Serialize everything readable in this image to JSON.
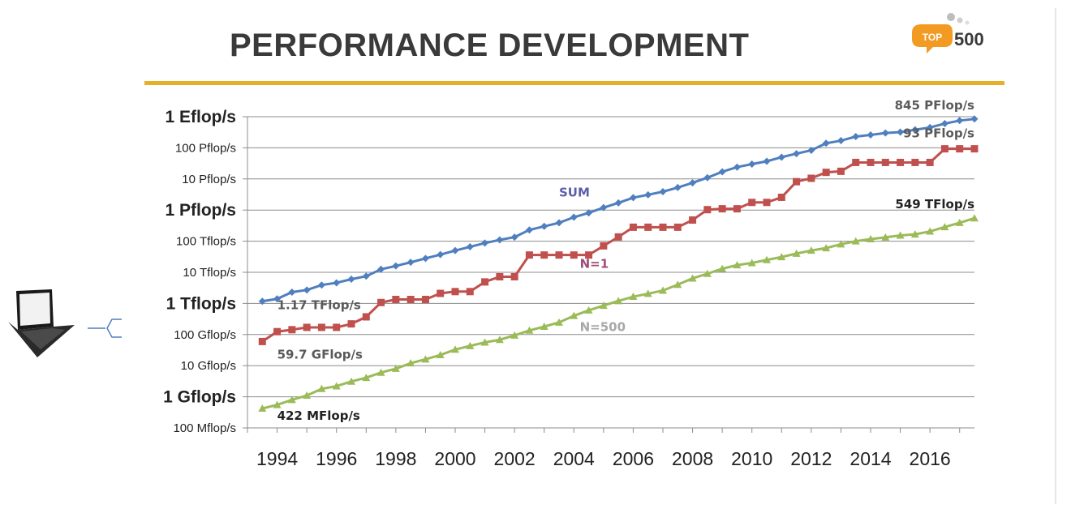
{
  "header": {
    "title": "PERFORMANCE DEVELOPMENT"
  },
  "logo": {
    "badge": "TOP",
    "number": "500"
  },
  "colors": {
    "sum": "#4f7fbf",
    "n1": "#c0504d",
    "n500": "#9bbb59",
    "rule": "#e5b12a"
  },
  "icons": {
    "device": "laptop-icon",
    "connector": "bracket-connector-icon"
  },
  "chart_data": {
    "type": "line",
    "title": "",
    "xlabel": "",
    "ylabel": "",
    "y_scale": "log",
    "y_unit": "flop/s",
    "ylim": [
      100000000.0,
      1e+18
    ],
    "xlim": [
      1993,
      2017.5
    ],
    "grid": true,
    "y_ticks": [
      {
        "value": 100000000.0,
        "label": "100 Mflop/s",
        "major": false
      },
      {
        "value": 1000000000.0,
        "label": "1 Gflop/s",
        "major": true
      },
      {
        "value": 10000000000.0,
        "label": "10 Gflop/s",
        "major": false
      },
      {
        "value": 100000000000.0,
        "label": "100 Gflop/s",
        "major": false
      },
      {
        "value": 1000000000000.0,
        "label": "1 Tflop/s",
        "major": true
      },
      {
        "value": 10000000000000.0,
        "label": "10 Tflop/s",
        "major": false
      },
      {
        "value": 100000000000000.0,
        "label": "100 Tflop/s",
        "major": false
      },
      {
        "value": 1000000000000000.0,
        "label": "1 Pflop/s",
        "major": true
      },
      {
        "value": 1e+16,
        "label": "10 Pflop/s",
        "major": false
      },
      {
        "value": 1e+17,
        "label": "100 Pflop/s",
        "major": false
      },
      {
        "value": 1e+18,
        "label": "1 Eflop/s",
        "major": true
      }
    ],
    "x_ticks": [
      1994,
      1996,
      1998,
      2000,
      2002,
      2004,
      2006,
      2008,
      2010,
      2012,
      2014,
      2016
    ],
    "series": [
      {
        "name": "SUM",
        "color": "#4f7fbf",
        "marker": "diamond",
        "x": [
          1993.5,
          1994,
          1994.5,
          1995,
          1995.5,
          1996,
          1996.5,
          1997,
          1997.5,
          1998,
          1998.5,
          1999,
          1999.5,
          2000,
          2000.5,
          2001,
          2001.5,
          2002,
          2002.5,
          2003,
          2003.5,
          2004,
          2004.5,
          2005,
          2005.5,
          2006,
          2006.5,
          2007,
          2007.5,
          2008,
          2008.5,
          2009,
          2009.5,
          2010,
          2010.5,
          2011,
          2011.5,
          2012,
          2012.5,
          2013,
          2013.5,
          2014,
          2014.5,
          2015,
          2015.5,
          2016,
          2016.5,
          2017,
          2017.5
        ],
        "y": [
          1170000000000.0,
          1400000000000.0,
          2300000000000.0,
          2700000000000.0,
          3900000000000.0,
          4600000000000.0,
          6000000000000.0,
          7500000000000.0,
          12500000000000.0,
          16000000000000.0,
          21000000000000.0,
          28000000000000.0,
          37000000000000.0,
          50000000000000.0,
          66000000000000.0,
          87000000000000.0,
          110000000000000.0,
          135000000000000.0,
          230000000000000.0,
          300000000000000.0,
          390000000000000.0,
          590000000000000.0,
          810000000000000.0,
          1200000000000000.0,
          1700000000000000.0,
          2500000000000000.0,
          3100000000000000.0,
          3900000000000000.0,
          5300000000000000.0,
          7500000000000000.0,
          1.1e+16,
          1.7e+16,
          2.4e+16,
          3e+16,
          3.7e+16,
          5e+16,
          6.5e+16,
          8.3e+16,
          1.4e+17,
          1.7e+17,
          2.3e+17,
          2.6e+17,
          3e+17,
          3.2e+17,
          3.8e+17,
          4.5e+17,
          6e+17,
          7.5e+17,
          8.45e+17
        ]
      },
      {
        "name": "N=1",
        "color": "#c0504d",
        "marker": "square",
        "x": [
          1993.5,
          1994,
          1994.5,
          1995,
          1995.5,
          1996,
          1996.5,
          1997,
          1997.5,
          1998,
          1998.5,
          1999,
          1999.5,
          2000,
          2000.5,
          2001,
          2001.5,
          2002,
          2002.5,
          2003,
          2003.5,
          2004,
          2004.5,
          2005,
          2005.5,
          2006,
          2006.5,
          2007,
          2007.5,
          2008,
          2008.5,
          2009,
          2009.5,
          2010,
          2010.5,
          2011,
          2011.5,
          2012,
          2012.5,
          2013,
          2013.5,
          2014,
          2014.5,
          2015,
          2015.5,
          2016,
          2016.5,
          2017,
          2017.5
        ],
        "y": [
          59700000000.0,
          124000000000.0,
          143000000000.0,
          170000000000.0,
          170000000000.0,
          170000000000.0,
          220000000000.0,
          370000000000.0,
          1070000000000.0,
          1340000000000.0,
          1340000000000.0,
          1340000000000.0,
          2100000000000.0,
          2400000000000.0,
          2400000000000.0,
          4900000000000.0,
          7200000000000.0,
          7200000000000.0,
          35900000000000.0,
          35900000000000.0,
          35900000000000.0,
          35900000000000.0,
          35900000000000.0,
          70700000000000.0,
          137000000000000.0,
          281000000000000.0,
          281000000000000.0,
          281000000000000.0,
          281000000000000.0,
          478000000000000.0,
          1030000000000000.0,
          1100000000000000.0,
          1100000000000000.0,
          1760000000000000.0,
          1760000000000000.0,
          2570000000000000.0,
          8160000000000000.0,
          1.05e+16,
          1.63e+16,
          1.76e+16,
          3.39e+16,
          3.39e+16,
          3.39e+16,
          3.39e+16,
          3.39e+16,
          3.39e+16,
          9.3e+16,
          9.3e+16,
          9.3e+16
        ]
      },
      {
        "name": "N=500",
        "color": "#9bbb59",
        "marker": "triangle",
        "x": [
          1993.5,
          1994,
          1994.5,
          1995,
          1995.5,
          1996,
          1996.5,
          1997,
          1997.5,
          1998,
          1998.5,
          1999,
          1999.5,
          2000,
          2000.5,
          2001,
          2001.5,
          2002,
          2002.5,
          2003,
          2003.5,
          2004,
          2004.5,
          2005,
          2005.5,
          2006,
          2006.5,
          2007,
          2007.5,
          2008,
          2008.5,
          2009,
          2009.5,
          2010,
          2010.5,
          2011,
          2011.5,
          2012,
          2012.5,
          2013,
          2013.5,
          2014,
          2014.5,
          2015,
          2015.5,
          2016,
          2016.5,
          2017,
          2017.5
        ],
        "y": [
          422000000.0,
          550000000.0,
          800000000.0,
          1100000000.0,
          1800000000.0,
          2200000000.0,
          3100000000.0,
          4100000000.0,
          6000000000.0,
          8000000000.0,
          12000000000.0,
          16000000000.0,
          22000000000.0,
          33000000000.0,
          43000000000.0,
          56000000000.0,
          68000000000.0,
          94000000000.0,
          135000000000.0,
          180000000000.0,
          245000000000.0,
          400000000000.0,
          600000000000.0,
          850000000000.0,
          1200000000000.0,
          1650000000000.0,
          2050000000000.0,
          2600000000000.0,
          4000000000000.0,
          6400000000000.0,
          9000000000000.0,
          13000000000000.0,
          17000000000000.0,
          20000000000000.0,
          25000000000000.0,
          31000000000000.0,
          40000000000000.0,
          50000000000000.0,
          60000000000000.0,
          80000000000000.0,
          100000000000000.0,
          117000000000000.0,
          133000000000000.0,
          153000000000000.0,
          166000000000000.0,
          206000000000000.0,
          286000000000000.0,
          390000000000000.0,
          549000000000000.0
        ]
      }
    ],
    "annotations": [
      {
        "text": "845 PFlop/s",
        "x": 2017.5,
        "y": 8.45e+17,
        "color": "#5a5a5a",
        "anchor": "end",
        "dy": -12
      },
      {
        "text": "93 PFlop/s",
        "x": 2017.5,
        "y": 9.3e+16,
        "color": "#5a5a5a",
        "anchor": "end",
        "dy": -14
      },
      {
        "text": "549 TFlop/s",
        "x": 2017.5,
        "y": 549000000000000.0,
        "color": "#222222",
        "anchor": "end",
        "dy": -12
      },
      {
        "text": "SUM",
        "x": 2003.5,
        "y": 2700000000000000.0,
        "color": "#5d5fa8",
        "anchor": "start",
        "dy": 0
      },
      {
        "text": "N=1",
        "x": 2004.2,
        "y": 14000000000000.0,
        "color": "#a04d7a",
        "anchor": "start",
        "dy": 0
      },
      {
        "text": "N=500",
        "x": 2004.2,
        "y": 130000000000.0,
        "color": "#a8a8a8",
        "anchor": "start",
        "dy": 0,
        "plain": true
      },
      {
        "text": "1.17 TFlop/s",
        "x": 1994.0,
        "y": 650000000000.0,
        "color": "#5a5a5a",
        "anchor": "start",
        "dy": 0
      },
      {
        "text": "59.7 GFlop/s",
        "x": 1994.0,
        "y": 17000000000.0,
        "color": "#5a5a5a",
        "anchor": "start",
        "dy": 0
      },
      {
        "text": "422 MFlop/s",
        "x": 1994.0,
        "y": 180000000.0,
        "color": "#222222",
        "anchor": "start",
        "dy": 0
      }
    ]
  }
}
